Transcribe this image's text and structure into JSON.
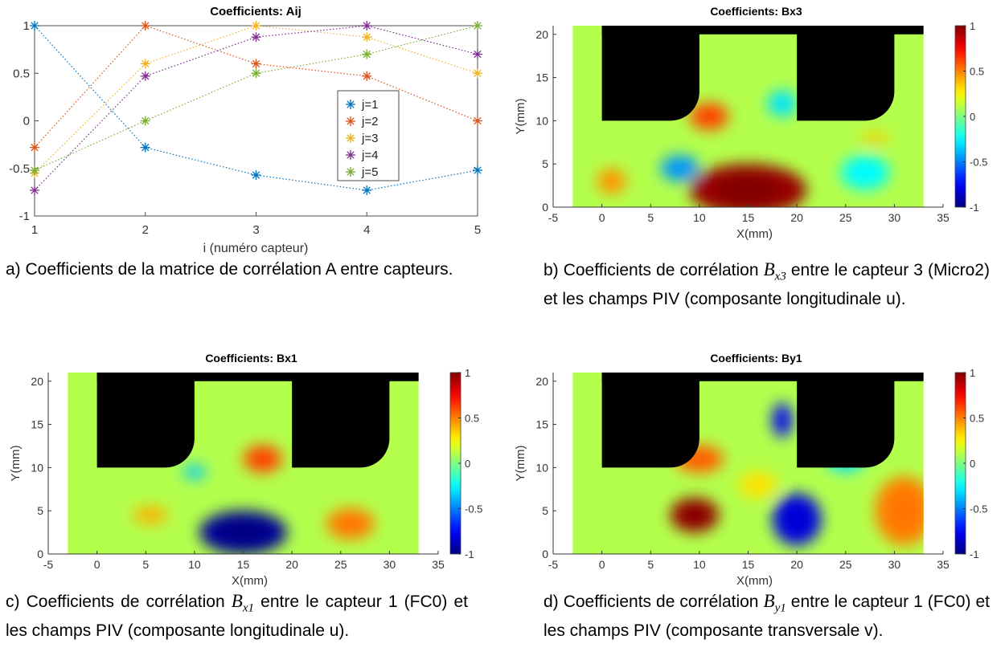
{
  "line_panel": {
    "title": "Coefficients: Aij",
    "xlabel": "i (numéro capteur)",
    "x_ticks": [
      "1",
      "2",
      "3",
      "4",
      "5"
    ],
    "y_ticks": [
      "-1",
      "-0.5",
      "0",
      "0.5",
      "1"
    ],
    "legend": [
      "j=1",
      "j=2",
      "j=3",
      "j=4",
      "j=5"
    ],
    "caption": "a) Coefficients de la matrice de corrélation A entre capteurs."
  },
  "heatmaps": [
    {
      "id": "b",
      "title": "Coefficients: Bx3",
      "xlabel": "X(mm)",
      "ylabel": "Y(mm)",
      "x_ticks": [
        "-5",
        "0",
        "5",
        "10",
        "15",
        "20",
        "25",
        "30",
        "35"
      ],
      "y_ticks": [
        "0",
        "5",
        "10",
        "15",
        "20"
      ],
      "cbar_ticks": [
        "1",
        "0.5",
        "0",
        "-0.5",
        "-1"
      ],
      "caption": {
        "prefix": "b) Coefficients de corrélation",
        "symbol": "B",
        "sub": "x3",
        "suffix": "entre le capteur 3 (Micro2) et les champs PIV (composante longitudinale u)."
      }
    },
    {
      "id": "c",
      "title": "Coefficients: Bx1",
      "xlabel": "X(mm)",
      "ylabel": "Y(mm)",
      "x_ticks": [
        "-5",
        "0",
        "5",
        "10",
        "15",
        "20",
        "25",
        "30",
        "35"
      ],
      "y_ticks": [
        "0",
        "5",
        "10",
        "15",
        "20"
      ],
      "cbar_ticks": [
        "1",
        "0.5",
        "0",
        "-0.5",
        "-1"
      ],
      "caption": {
        "prefix": "c) Coefficients de corrélation",
        "symbol": "B",
        "sub": "x1",
        "suffix": "entre le capteur 1 (FC0) et les champs PIV (composante longitudinale u)."
      }
    },
    {
      "id": "d",
      "title": "Coefficients: By1",
      "xlabel": "X(mm)",
      "ylabel": "Y(mm)",
      "x_ticks": [
        "-5",
        "0",
        "5",
        "10",
        "15",
        "20",
        "25",
        "30",
        "35"
      ],
      "y_ticks": [
        "0",
        "5",
        "10",
        "15",
        "20"
      ],
      "cbar_ticks": [
        "1",
        "0.5",
        "0",
        "-0.5",
        "-1"
      ],
      "caption": {
        "prefix": "d) Coefficients de corrélation",
        "symbol": "B",
        "sub": "y1",
        "suffix": "entre le capteur 1 (FC0) et les champs PIV (composante transversale v)."
      }
    }
  ],
  "chart_data": [
    {
      "type": "line",
      "title": "Coefficients: Aij",
      "xlabel": "i (numéro capteur)",
      "ylabel": "",
      "xlim": [
        1,
        5
      ],
      "ylim": [
        -1,
        1
      ],
      "x": [
        1,
        2,
        3,
        4,
        5
      ],
      "marker": "asterisk",
      "line_style": "dotted",
      "legend_position": "center-right",
      "series": [
        {
          "name": "j=1",
          "color": "#0072BD",
          "values": [
            1,
            -0.28,
            -0.57,
            -0.73,
            -0.52
          ]
        },
        {
          "name": "j=2",
          "color": "#D95319",
          "values": [
            -0.28,
            1,
            0.6,
            0.47,
            0
          ]
        },
        {
          "name": "j=3",
          "color": "#EDB120",
          "values": [
            -0.55,
            0.6,
            1,
            0.88,
            0.5
          ]
        },
        {
          "name": "j=4",
          "color": "#7E2F8E",
          "values": [
            -0.73,
            0.47,
            0.88,
            1,
            0.7
          ]
        },
        {
          "name": "j=5",
          "color": "#77AC30",
          "values": [
            -0.52,
            0,
            0.5,
            0.7,
            1
          ]
        }
      ]
    },
    {
      "type": "heatmap",
      "title": "Coefficients: Bx3",
      "xlabel": "X(mm)",
      "ylabel": "Y(mm)",
      "xlim": [
        -5,
        35
      ],
      "ylim": [
        0,
        21
      ],
      "clim": [
        -1,
        1
      ],
      "colormap": "jet",
      "blobs": [
        {
          "x": 15,
          "y": 2,
          "rx": 6,
          "ry": 3,
          "v": 0.95
        },
        {
          "x": 11,
          "y": 10.5,
          "rx": 2,
          "ry": 1.6,
          "v": 0.6
        },
        {
          "x": 1,
          "y": 3,
          "rx": 1.5,
          "ry": 1.5,
          "v": 0.45
        },
        {
          "x": 8,
          "y": 4.5,
          "rx": 2,
          "ry": 1.5,
          "v": -0.45
        },
        {
          "x": 18.5,
          "y": 12,
          "rx": 1.5,
          "ry": 1.5,
          "v": -0.3
        },
        {
          "x": 27,
          "y": 4,
          "rx": 2.5,
          "ry": 2,
          "v": -0.25
        },
        {
          "x": 28,
          "y": 8,
          "rx": 1.5,
          "ry": 0.6,
          "v": 0.35
        }
      ]
    },
    {
      "type": "heatmap",
      "title": "Coefficients: Bx1",
      "xlabel": "X(mm)",
      "ylabel": "Y(mm)",
      "xlim": [
        -5,
        35
      ],
      "ylim": [
        0,
        21
      ],
      "clim": [
        -1,
        1
      ],
      "colormap": "jet",
      "blobs": [
        {
          "x": 15,
          "y": 2.5,
          "rx": 4.5,
          "ry": 2.5,
          "v": -0.95
        },
        {
          "x": 17,
          "y": 11,
          "rx": 2,
          "ry": 1.6,
          "v": 0.6
        },
        {
          "x": 26,
          "y": 3.5,
          "rx": 2.5,
          "ry": 1.8,
          "v": 0.5
        },
        {
          "x": 5.5,
          "y": 4.5,
          "rx": 1.8,
          "ry": 1,
          "v": 0.4
        },
        {
          "x": 10,
          "y": 9.5,
          "rx": 1.2,
          "ry": 0.8,
          "v": -0.35
        }
      ]
    },
    {
      "type": "heatmap",
      "title": "Coefficients: By1",
      "xlabel": "X(mm)",
      "ylabel": "Y(mm)",
      "xlim": [
        -5,
        35
      ],
      "ylim": [
        0,
        21
      ],
      "clim": [
        -1,
        1
      ],
      "colormap": "jet",
      "blobs": [
        {
          "x": 9.5,
          "y": 4.5,
          "rx": 2.5,
          "ry": 2,
          "v": 0.95
        },
        {
          "x": 10,
          "y": 11,
          "rx": 2.5,
          "ry": 1.6,
          "v": 0.55
        },
        {
          "x": 20,
          "y": 4,
          "rx": 2.5,
          "ry": 3,
          "v": -0.8
        },
        {
          "x": 31,
          "y": 5,
          "rx": 3,
          "ry": 4,
          "v": 0.5
        },
        {
          "x": 18.5,
          "y": 15.5,
          "rx": 1,
          "ry": 2,
          "v": -0.75
        },
        {
          "x": 16,
          "y": 8,
          "rx": 2,
          "ry": 1.5,
          "v": 0.3
        },
        {
          "x": 25,
          "y": 11,
          "rx": 2,
          "ry": 1.5,
          "v": -0.3
        }
      ]
    }
  ]
}
